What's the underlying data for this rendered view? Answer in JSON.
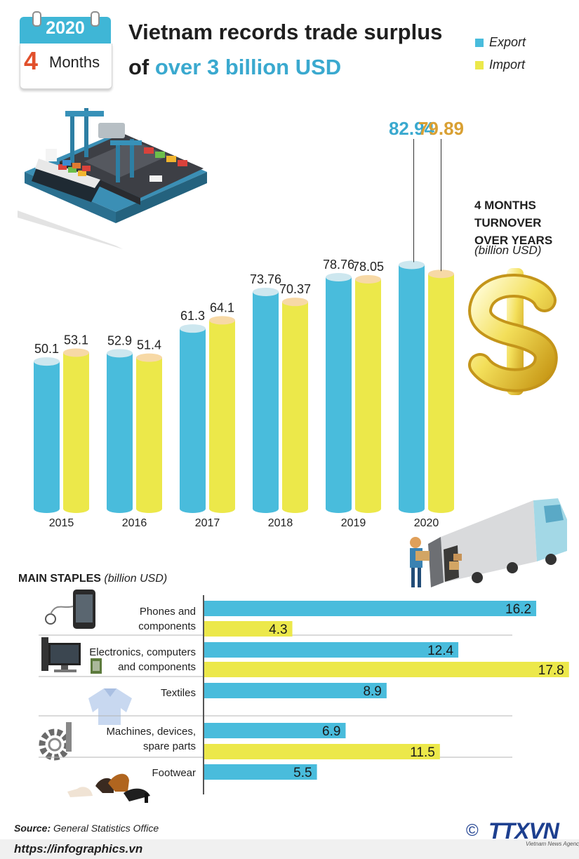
{
  "badge": {
    "year": "2020",
    "number": "4",
    "months_label": "Months"
  },
  "title": {
    "line1": "Vietnam records trade surplus",
    "line2_prefix": "of ",
    "line2_highlight": "over 3 billion USD"
  },
  "legend": {
    "export": "Export",
    "import": "Import"
  },
  "side_label": {
    "line1": "4 MONTHS",
    "line2": "TURNOVER",
    "line3": "OVER YEARS",
    "unit": "(billion USD)"
  },
  "colors": {
    "export": "#49bcdc",
    "import": "#ece84a",
    "export_top": "#cde7ef",
    "import_top": "#f7d9a6",
    "label_2020_export": "#3aa9cf",
    "label_2020_import": "#d9a033"
  },
  "chart_data": [
    {
      "type": "bar",
      "title": "4 months turnover over years (billion USD)",
      "categories": [
        "2015",
        "2016",
        "2017",
        "2018",
        "2019",
        "2020"
      ],
      "series": [
        {
          "name": "Export",
          "values": [
            50.1,
            52.9,
            61.3,
            73.76,
            78.76,
            82.94
          ],
          "labels": [
            "50.1",
            "52.9",
            "61.3",
            "73.76",
            "78.76",
            "82.94"
          ]
        },
        {
          "name": "Import",
          "values": [
            53.1,
            51.4,
            64.1,
            70.37,
            78.05,
            79.89
          ],
          "labels": [
            "53.1",
            "51.4",
            "64.1",
            "70.37",
            "78.05",
            "79.89"
          ]
        }
      ],
      "xlabel": "",
      "ylabel": "billion USD",
      "ylim": [
        0,
        90
      ]
    },
    {
      "type": "bar",
      "orientation": "horizontal",
      "title": "Main staples (billion USD)",
      "categories": [
        "Phones and components",
        "Electronics, computers and components",
        "Textiles",
        "Machines, devices, spare parts",
        "Footwear"
      ],
      "series": [
        {
          "name": "Export",
          "values": [
            16.2,
            12.4,
            8.9,
            6.9,
            5.5
          ],
          "labels": [
            "16.2",
            "12.4",
            "8.9",
            "6.9",
            "5.5"
          ]
        },
        {
          "name": "Import",
          "values": [
            4.3,
            17.8,
            null,
            11.5,
            null
          ],
          "labels": [
            "4.3",
            "17.8",
            "",
            "11.5",
            ""
          ]
        }
      ]
    }
  ],
  "staples": {
    "title": "MAIN STAPLES",
    "unit": "(billion USD)",
    "rows": [
      {
        "label1": "Phones and",
        "label2": "components"
      },
      {
        "label1": "Electronics, computers",
        "label2": "and components"
      },
      {
        "label1": "Textiles",
        "label2": ""
      },
      {
        "label1": "Machines, devices,",
        "label2": "spare parts"
      },
      {
        "label1": "Footwear",
        "label2": ""
      }
    ]
  },
  "source": {
    "label": "Source:",
    "text": "General Statistics Office"
  },
  "url": "https://infographics.vn",
  "logo": {
    "symbol": "©",
    "text": "TTXVN",
    "sub": "Vietnam News Agency"
  }
}
